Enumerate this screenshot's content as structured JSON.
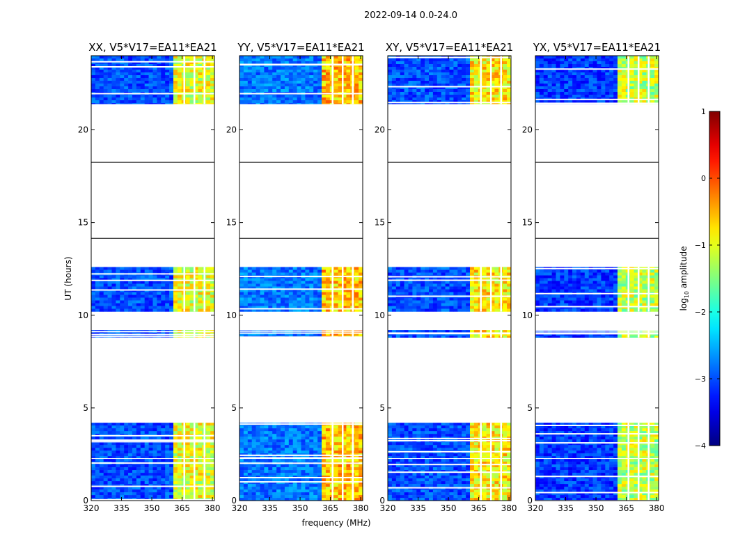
{
  "chart_data": {
    "type": "heatmap",
    "suptitle": "2022-09-14 0.0-24.0",
    "xlabel": "frequency (MHz)",
    "ylabel": "UT (hours)",
    "xlim": [
      320,
      381
    ],
    "ylim": [
      0,
      24
    ],
    "xticks": [
      "320",
      "335",
      "350",
      "365",
      "380"
    ],
    "yticks": [
      "0",
      "5",
      "10",
      "15",
      "20"
    ],
    "panels": [
      {
        "title": "XX, V5*V17=EA11*EA21",
        "baseline": -3.0,
        "band": -1.0
      },
      {
        "title": "YY, V5*V17=EA11*EA21",
        "baseline": -2.8,
        "band": -0.6
      },
      {
        "title": "XY, V5*V17=EA11*EA21",
        "baseline": -3.0,
        "band": -0.8
      },
      {
        "title": "YX, V5*V17=EA11*EA21",
        "baseline": -3.1,
        "band": -1.2
      }
    ],
    "band_range_mhz": [
      361,
      380
    ],
    "band_channel_gaps_mhz": [
      366,
      371,
      376
    ],
    "data_time_blocks_hours": [
      [
        0.0,
        2.25
      ],
      [
        2.3,
        4.2
      ],
      [
        8.8,
        9.2
      ],
      [
        10.2,
        12.6
      ],
      [
        21.4,
        24.0
      ]
    ],
    "horizontal_lines_hours": [
      14.15,
      18.25
    ],
    "colorbar": {
      "label": "log10 amplitude",
      "min": -4,
      "max": 1,
      "ticks": [
        "1",
        "0",
        "−1",
        "−2",
        "−3",
        "−4"
      ],
      "colormap": "jet"
    }
  }
}
